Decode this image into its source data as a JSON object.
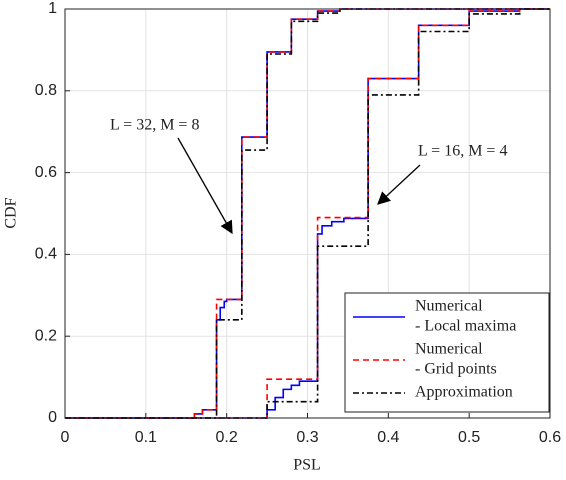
{
  "chart_data": {
    "type": "step",
    "xlabel": "PSL",
    "ylabel": "CDF",
    "xlim": [
      0,
      0.6
    ],
    "xticks": [
      0,
      0.1,
      0.2,
      0.3,
      0.4,
      0.5,
      0.6
    ],
    "ylim": [
      0,
      1
    ],
    "yticks": [
      0,
      0.2,
      0.4,
      0.6,
      0.8,
      1
    ],
    "grid": true,
    "legend": "lower right",
    "annotations": [
      "L = 32, M = 8",
      "L = 16, M = 4"
    ],
    "series": [
      {
        "name": [
          "Numerical",
          "- Local maxima"
        ],
        "color": "#0000ff",
        "dash": "solid",
        "curves": [
          {
            "x": [
              0,
              0.16,
              0.17,
              0.1875,
              0.192,
              0.197,
              0.2,
              0.21875,
              0.25,
              0.28,
              0.3125,
              0.34,
              0.6
            ],
            "values": [
              0,
              0.01,
              0.02,
              0.24,
              0.27,
              0.285,
              0.29,
              0.687,
              0.895,
              0.975,
              0.995,
              1,
              1
            ]
          },
          {
            "x": [
              0,
              0.25,
              0.26,
              0.27,
              0.28,
              0.29,
              0.3125,
              0.318,
              0.33,
              0.345,
              0.375,
              0.4375,
              0.5,
              0.5625,
              0.6
            ],
            "values": [
              0,
              0.02,
              0.05,
              0.07,
              0.08,
              0.09,
              0.45,
              0.47,
              0.48,
              0.488,
              0.83,
              0.96,
              0.995,
              1,
              1
            ]
          }
        ]
      },
      {
        "name": [
          "Numerical",
          "- Grid points"
        ],
        "color": "#ff0000",
        "dash": "6,4",
        "curves": [
          {
            "x": [
              0,
              0.16,
              0.17,
              0.1875,
              0.21875,
              0.25,
              0.28,
              0.3125,
              0.34,
              0.6
            ],
            "values": [
              0,
              0.01,
              0.02,
              0.29,
              0.687,
              0.895,
              0.975,
              0.995,
              1,
              1
            ]
          },
          {
            "x": [
              0,
              0.25,
              0.3125,
              0.375,
              0.4375,
              0.5,
              0.5625,
              0.6
            ],
            "values": [
              0,
              0.095,
              0.49,
              0.83,
              0.96,
              0.995,
              1,
              1
            ]
          }
        ]
      },
      {
        "name": [
          "Approximation"
        ],
        "color": "#000000",
        "dash": "6,3,2,3",
        "curves": [
          {
            "x": [
              0,
              0.1875,
              0.21875,
              0.25,
              0.28,
              0.3125,
              0.34,
              0.6
            ],
            "values": [
              0,
              0.24,
              0.655,
              0.89,
              0.97,
              0.99,
              1,
              1
            ]
          },
          {
            "x": [
              0,
              0.25,
              0.3125,
              0.375,
              0.4375,
              0.5,
              0.5625,
              0.6
            ],
            "values": [
              0,
              0.04,
              0.42,
              0.79,
              0.945,
              0.988,
              1,
              1
            ]
          }
        ]
      }
    ]
  }
}
